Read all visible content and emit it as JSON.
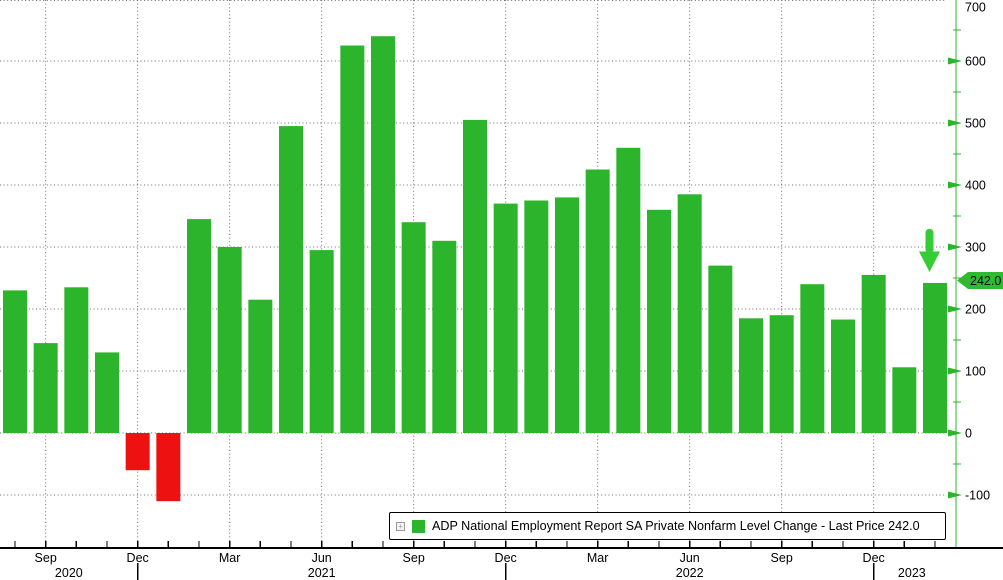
{
  "chart_data": {
    "type": "bar",
    "title": "ADP National Employment Report SA Private Nonfarm Level Change",
    "legend": {
      "expand_icon": "+",
      "swatch_color": "#2db42d",
      "label": "ADP National Employment Report SA Private Nonfarm Level Change - Last Price 242.0"
    },
    "last_price_label": "242.0",
    "categories": [
      "Aug 2020",
      "Sep 2020",
      "Oct 2020",
      "Nov 2020",
      "Dec 2020",
      "Jan 2021",
      "Feb 2021",
      "Mar 2021",
      "Apr 2021",
      "May 2021",
      "Jun 2021",
      "Jul 2021",
      "Aug 2021",
      "Sep 2021",
      "Oct 2021",
      "Nov 2021",
      "Dec 2021",
      "Jan 2022",
      "Feb 2022",
      "Mar 2022",
      "Apr 2022",
      "May 2022",
      "Jun 2022",
      "Jul 2022",
      "Aug 2022",
      "Sep 2022",
      "Oct 2022",
      "Nov 2022",
      "Dec 2022",
      "Jan 2023",
      "Feb 2023"
    ],
    "values": [
      230,
      145,
      235,
      130,
      -60,
      -110,
      345,
      300,
      215,
      495,
      295,
      625,
      640,
      340,
      310,
      505,
      370,
      375,
      380,
      425,
      460,
      360,
      385,
      270,
      185,
      190,
      240,
      183,
      255,
      106,
      242
    ],
    "colors": {
      "positive": "#2db42d",
      "negative": "#ee1111",
      "axis_green": "#2db42d",
      "annotation_arrow": "#35cc35",
      "badge_bg": "#2fbb2f",
      "grid": "#6e6e6e"
    },
    "y_axis": {
      "side": "right",
      "min": -100,
      "max": 700,
      "major_step": 100,
      "minor_step": 50,
      "major_tick_labels": [
        "700",
        "600",
        "500",
        "400",
        "300",
        "200",
        "100",
        "0",
        "-100"
      ]
    },
    "x_axis": {
      "quarter_labels": [
        {
          "month_index": 1,
          "label": "Sep"
        },
        {
          "month_index": 4,
          "label": "Dec"
        },
        {
          "month_index": 7,
          "label": "Mar"
        },
        {
          "month_index": 10,
          "label": "Jun"
        },
        {
          "month_index": 13,
          "label": "Sep"
        },
        {
          "month_index": 16,
          "label": "Dec"
        },
        {
          "month_index": 19,
          "label": "Mar"
        },
        {
          "month_index": 22,
          "label": "Jun"
        },
        {
          "month_index": 25,
          "label": "Sep"
        },
        {
          "month_index": 28,
          "label": "Dec"
        }
      ],
      "year_labels": [
        "2020",
        "2021",
        "2022",
        "2023"
      ],
      "year_separator_month_indices": [
        4,
        16,
        28
      ]
    },
    "annotations": [
      {
        "type": "down-arrow",
        "month_index": 30,
        "color": "#35cc35"
      },
      {
        "type": "last-price-badge",
        "text": "242.0",
        "value": 242.0
      }
    ],
    "grid": {
      "horizontal": "dotted",
      "vertical": "dotted"
    },
    "ylim": [
      -100,
      700
    ],
    "xlabel": "",
    "ylabel": ""
  }
}
